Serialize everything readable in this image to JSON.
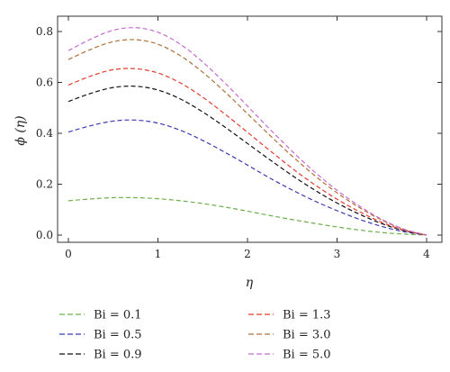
{
  "chart_data": {
    "type": "line",
    "xlabel": "η",
    "ylabel": "ϕ (η)",
    "xlim": [
      0,
      4
    ],
    "ylim": [
      0,
      0.85
    ],
    "xticks": [
      0,
      1,
      2,
      3,
      4
    ],
    "yticks": [
      0.0,
      0.2,
      0.4,
      0.6,
      0.8
    ],
    "x": [
      0,
      0.25,
      0.5,
      0.75,
      1,
      1.25,
      1.5,
      1.75,
      2,
      2.25,
      2.5,
      2.75,
      3,
      3.25,
      3.5,
      3.75,
      4
    ],
    "series": [
      {
        "name": "Bi = 0.1",
        "color": "#6ab04c",
        "values": [
          0.135,
          0.142,
          0.147,
          0.147,
          0.143,
          0.135,
          0.124,
          0.11,
          0.094,
          0.077,
          0.061,
          0.046,
          0.032,
          0.02,
          0.01,
          0.004,
          0.0
        ]
      },
      {
        "name": "Bi = 0.5",
        "color": "#3b3bb0",
        "values": [
          0.405,
          0.43,
          0.448,
          0.452,
          0.44,
          0.412,
          0.372,
          0.325,
          0.275,
          0.224,
          0.177,
          0.134,
          0.096,
          0.062,
          0.034,
          0.013,
          0.0
        ]
      },
      {
        "name": "Bi = 0.9",
        "color": "#111111",
        "values": [
          0.525,
          0.557,
          0.58,
          0.585,
          0.57,
          0.535,
          0.484,
          0.424,
          0.36,
          0.296,
          0.234,
          0.177,
          0.126,
          0.082,
          0.045,
          0.017,
          0.0
        ]
      },
      {
        "name": "Bi = 1.3",
        "color": "#e03c2e",
        "values": [
          0.59,
          0.625,
          0.65,
          0.654,
          0.637,
          0.598,
          0.542,
          0.475,
          0.404,
          0.332,
          0.262,
          0.198,
          0.141,
          0.092,
          0.05,
          0.019,
          0.0
        ]
      },
      {
        "name": "Bi = 3.0",
        "color": "#b0703a",
        "values": [
          0.69,
          0.73,
          0.76,
          0.768,
          0.75,
          0.705,
          0.64,
          0.562,
          0.477,
          0.392,
          0.31,
          0.234,
          0.166,
          0.108,
          0.059,
          0.022,
          0.0
        ]
      },
      {
        "name": "Bi = 5.0",
        "color": "#c86ad0",
        "values": [
          0.725,
          0.77,
          0.805,
          0.815,
          0.797,
          0.75,
          0.68,
          0.597,
          0.507,
          0.416,
          0.329,
          0.248,
          0.176,
          0.114,
          0.062,
          0.023,
          0.0
        ]
      }
    ],
    "legend_placement": "bottom, two columns",
    "grid": false
  }
}
